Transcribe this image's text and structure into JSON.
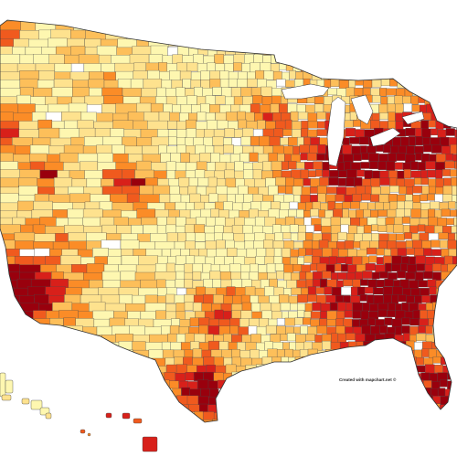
{
  "map": {
    "type": "choropleth",
    "region": "United States counties",
    "credit": "Created with mapchart.net ©",
    "palette": {
      "none": "#ffffff",
      "very_light": "#fef7b0",
      "light": "#fee28e",
      "medium": "#fdbf5a",
      "orange": "#fb8c27",
      "dark_orange": "#f05a1e",
      "red": "#d8201a",
      "dark_red": "#99000d"
    },
    "border_color": "#4a4a4a",
    "background": "#ffffff"
  }
}
